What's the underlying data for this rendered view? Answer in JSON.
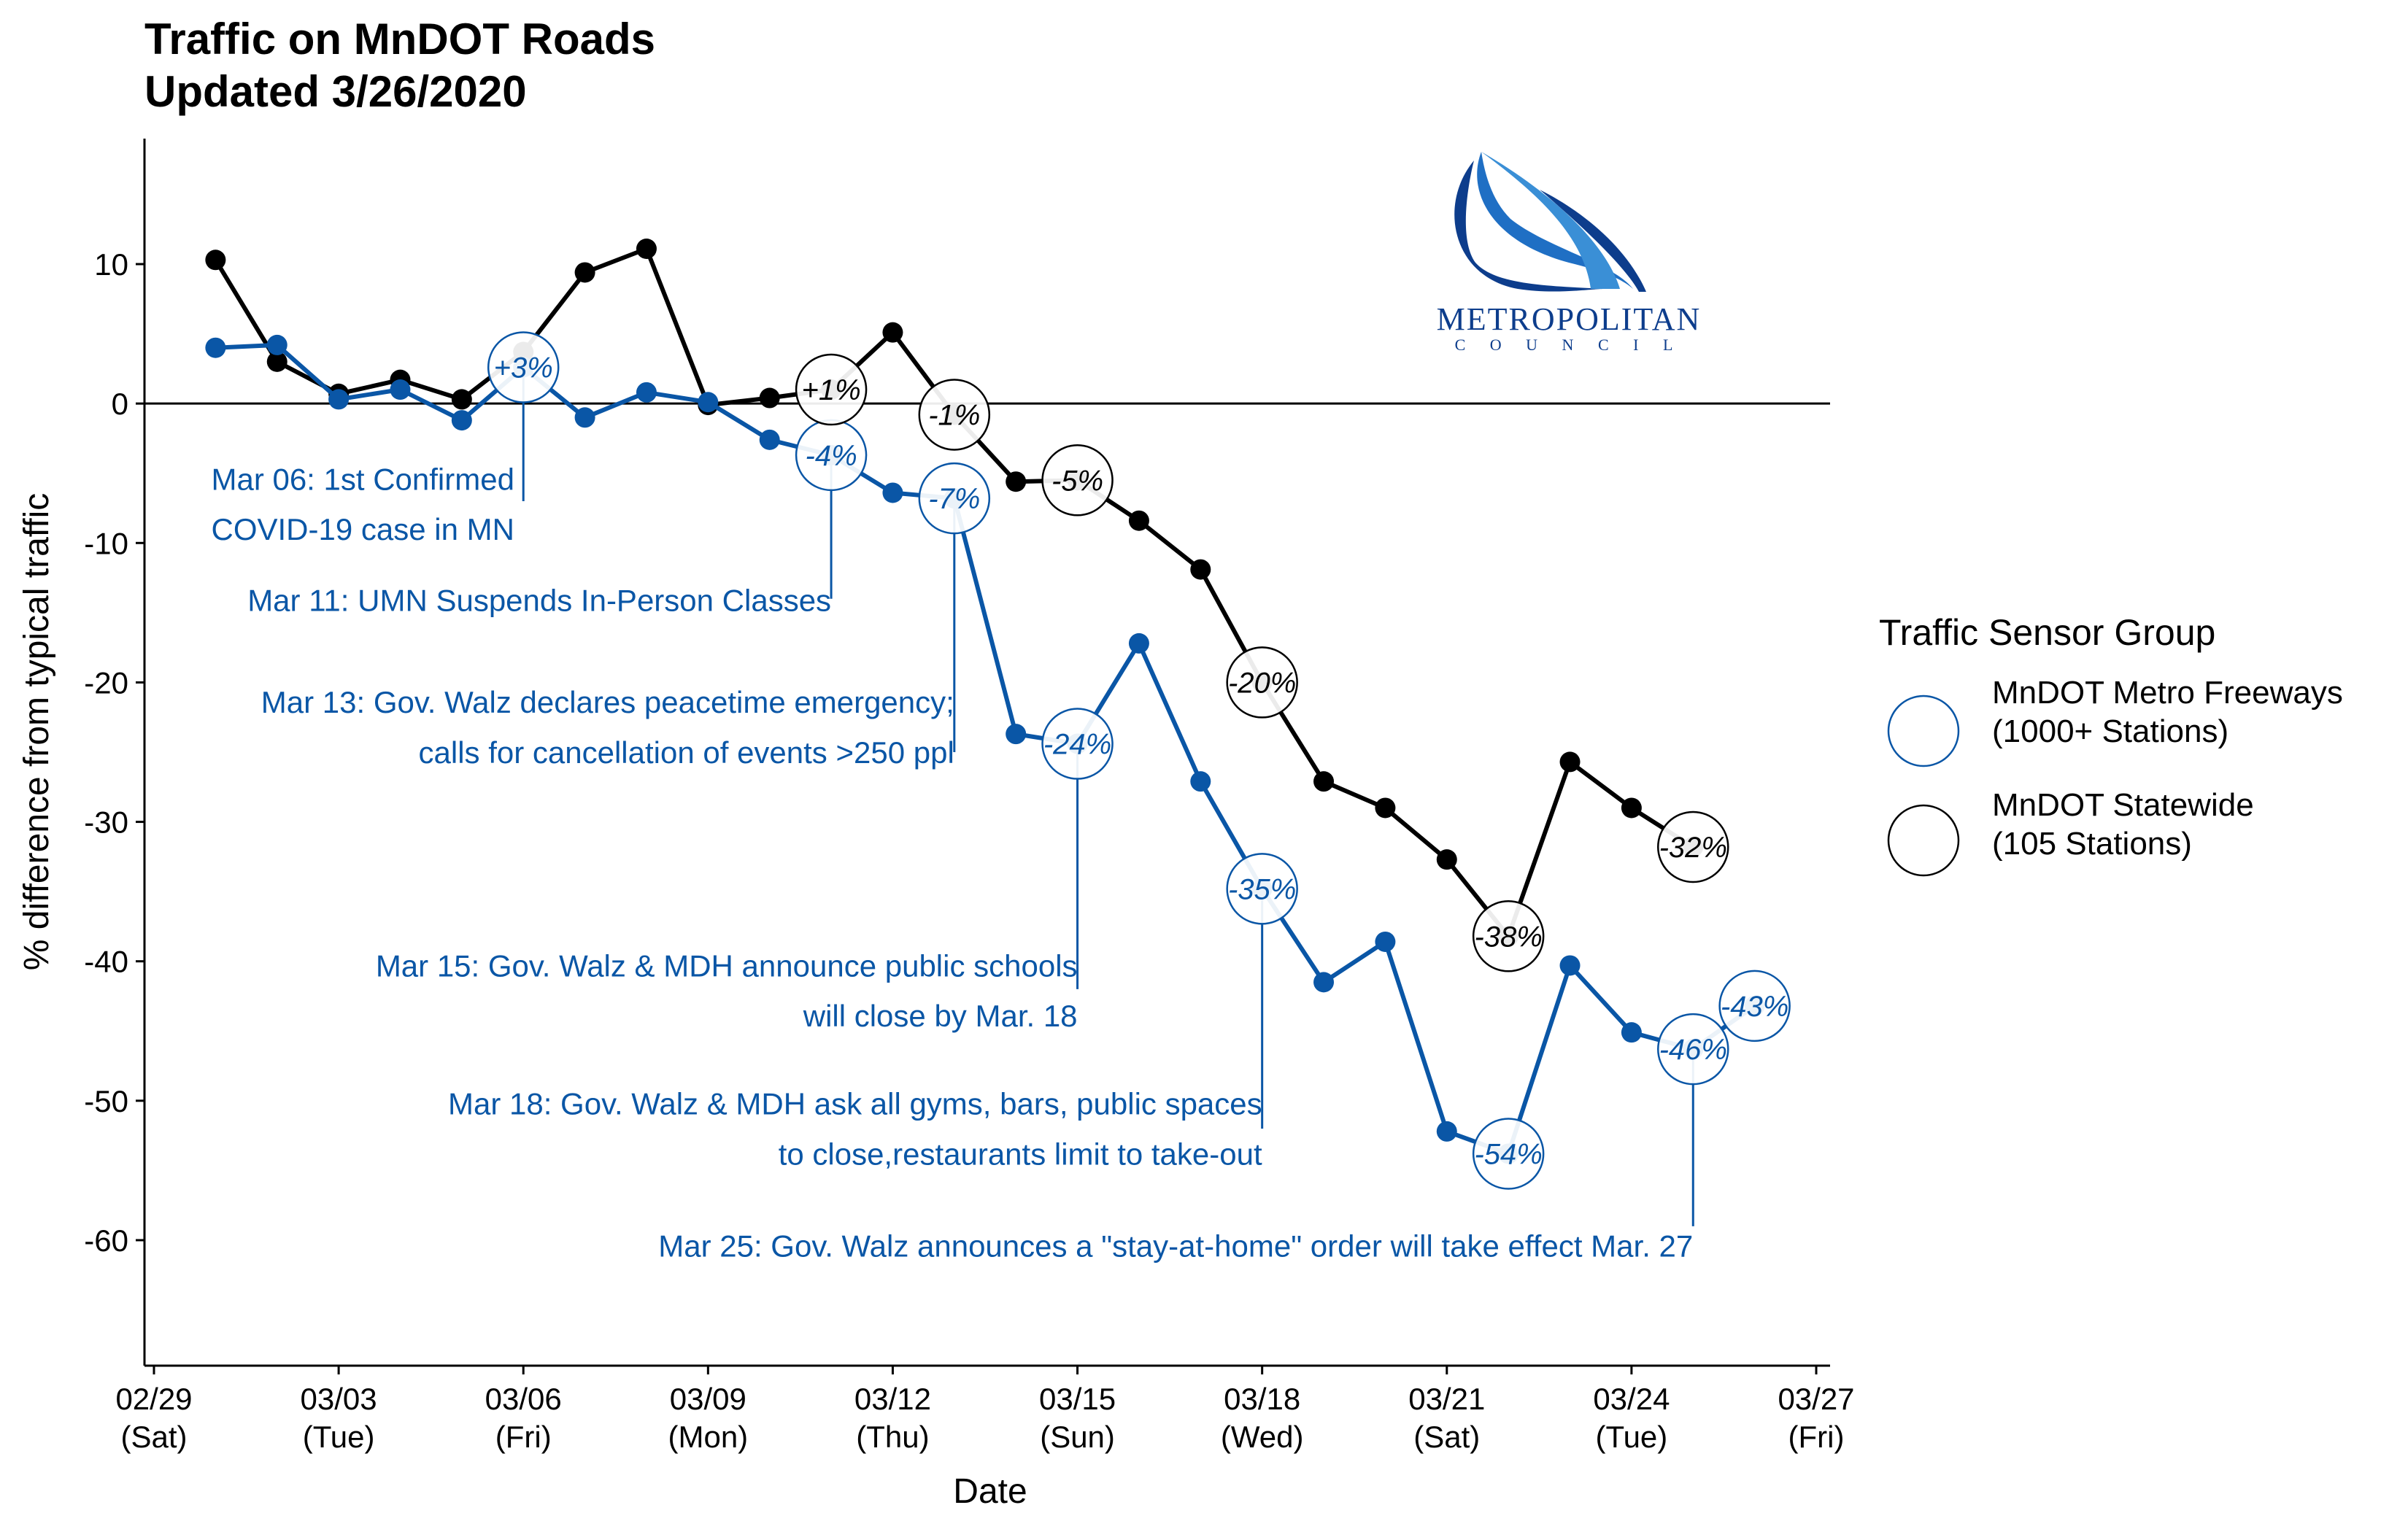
{
  "chart_data": {
    "type": "line",
    "title": "Traffic on MnDOT Roads",
    "subtitle": "Updated 3/26/2020",
    "xlabel": "Date",
    "ylabel": "% difference from typical traffic",
    "xlim": [
      "2020-02-29",
      "2020-03-27"
    ],
    "ylim": [
      -69,
      19
    ],
    "x_ticks": [
      {
        "date": "2020-02-29",
        "label": "02/29",
        "sub": "(Sat)"
      },
      {
        "date": "2020-03-03",
        "label": "03/03",
        "sub": "(Tue)"
      },
      {
        "date": "2020-03-06",
        "label": "03/06",
        "sub": "(Fri)"
      },
      {
        "date": "2020-03-09",
        "label": "03/09",
        "sub": "(Mon)"
      },
      {
        "date": "2020-03-12",
        "label": "03/12",
        "sub": "(Thu)"
      },
      {
        "date": "2020-03-15",
        "label": "03/15",
        "sub": "(Sun)"
      },
      {
        "date": "2020-03-18",
        "label": "03/18",
        "sub": "(Wed)"
      },
      {
        "date": "2020-03-21",
        "label": "03/21",
        "sub": "(Sat)"
      },
      {
        "date": "2020-03-24",
        "label": "03/24",
        "sub": "(Tue)"
      },
      {
        "date": "2020-03-27",
        "label": "03/27",
        "sub": "(Fri)"
      }
    ],
    "y_ticks": [
      10,
      0,
      -10,
      -20,
      -30,
      -40,
      -50,
      -60
    ],
    "grid": false,
    "legend": {
      "title": "Traffic Sensor Group",
      "position": "right",
      "entries": [
        {
          "line1": "MnDOT Metro Freeways",
          "line2": "(1000+ Stations)",
          "color": "#0a56a6"
        },
        {
          "line1": "MnDOT Statewide",
          "line2": "(105 Stations)",
          "color": "#000000"
        }
      ]
    },
    "series": [
      {
        "key": "metro",
        "color": "#0a56a6",
        "points": [
          {
            "x": "2020-03-01",
            "y": 4.0
          },
          {
            "x": "2020-03-02",
            "y": 4.2
          },
          {
            "x": "2020-03-03",
            "y": 0.3
          },
          {
            "x": "2020-03-04",
            "y": 1.0
          },
          {
            "x": "2020-03-05",
            "y": -1.2
          },
          {
            "x": "2020-03-06",
            "y": 2.6
          },
          {
            "x": "2020-03-07",
            "y": -1.0
          },
          {
            "x": "2020-03-08",
            "y": 0.8
          },
          {
            "x": "2020-03-09",
            "y": 0.1
          },
          {
            "x": "2020-03-10",
            "y": -2.6
          },
          {
            "x": "2020-03-11",
            "y": -3.7
          },
          {
            "x": "2020-03-12",
            "y": -6.4
          },
          {
            "x": "2020-03-13",
            "y": -6.8
          },
          {
            "x": "2020-03-14",
            "y": -23.7
          },
          {
            "x": "2020-03-15",
            "y": -24.4
          },
          {
            "x": "2020-03-16",
            "y": -17.2
          },
          {
            "x": "2020-03-17",
            "y": -27.1
          },
          {
            "x": "2020-03-18",
            "y": -34.8
          },
          {
            "x": "2020-03-19",
            "y": -41.5
          },
          {
            "x": "2020-03-20",
            "y": -38.6
          },
          {
            "x": "2020-03-21",
            "y": -52.2
          },
          {
            "x": "2020-03-22",
            "y": -53.8
          },
          {
            "x": "2020-03-23",
            "y": -40.3
          },
          {
            "x": "2020-03-24",
            "y": -45.1
          },
          {
            "x": "2020-03-25",
            "y": -46.3
          },
          {
            "x": "2020-03-26",
            "y": -43.2
          }
        ]
      },
      {
        "key": "statewide",
        "color": "#000000",
        "points": [
          {
            "x": "2020-03-01",
            "y": 10.3
          },
          {
            "x": "2020-03-02",
            "y": 3.0
          },
          {
            "x": "2020-03-03",
            "y": 0.7
          },
          {
            "x": "2020-03-04",
            "y": 1.7
          },
          {
            "x": "2020-03-05",
            "y": 0.3
          },
          {
            "x": "2020-03-06",
            "y": 3.7
          },
          {
            "x": "2020-03-07",
            "y": 9.4
          },
          {
            "x": "2020-03-08",
            "y": 11.1
          },
          {
            "x": "2020-03-09",
            "y": -0.1
          },
          {
            "x": "2020-03-10",
            "y": 0.4
          },
          {
            "x": "2020-03-11",
            "y": 1.0
          },
          {
            "x": "2020-03-12",
            "y": 5.1
          },
          {
            "x": "2020-03-13",
            "y": -0.8
          },
          {
            "x": "2020-03-14",
            "y": -5.6
          },
          {
            "x": "2020-03-15",
            "y": -5.5
          },
          {
            "x": "2020-03-16",
            "y": -8.4
          },
          {
            "x": "2020-03-17",
            "y": -11.9
          },
          {
            "x": "2020-03-18",
            "y": -20.0
          },
          {
            "x": "2020-03-19",
            "y": -27.1
          },
          {
            "x": "2020-03-20",
            "y": -29.0
          },
          {
            "x": "2020-03-21",
            "y": -32.7
          },
          {
            "x": "2020-03-22",
            "y": -38.2
          },
          {
            "x": "2020-03-23",
            "y": -25.7
          },
          {
            "x": "2020-03-24",
            "y": -29.0
          },
          {
            "x": "2020-03-25",
            "y": -31.8
          }
        ]
      }
    ],
    "data_labels": [
      {
        "series": "metro",
        "x": "2020-03-06",
        "y": 2.6,
        "text": "+3%"
      },
      {
        "series": "metro",
        "x": "2020-03-11",
        "y": -3.7,
        "text": "-4%"
      },
      {
        "series": "metro",
        "x": "2020-03-13",
        "y": -6.8,
        "text": "-7%"
      },
      {
        "series": "metro",
        "x": "2020-03-15",
        "y": -24.4,
        "text": "-24%"
      },
      {
        "series": "metro",
        "x": "2020-03-18",
        "y": -34.8,
        "text": "-35%"
      },
      {
        "series": "metro",
        "x": "2020-03-22",
        "y": -53.8,
        "text": "-54%"
      },
      {
        "series": "metro",
        "x": "2020-03-25",
        "y": -46.3,
        "text": "-46%"
      },
      {
        "series": "metro",
        "x": "2020-03-26",
        "y": -43.2,
        "text": "-43%"
      },
      {
        "series": "statewide",
        "x": "2020-03-11",
        "y": 1.0,
        "text": "+1%"
      },
      {
        "series": "statewide",
        "x": "2020-03-13",
        "y": -0.8,
        "text": "-1%"
      },
      {
        "series": "statewide",
        "x": "2020-03-15",
        "y": -5.5,
        "text": "-5%"
      },
      {
        "series": "statewide",
        "x": "2020-03-18",
        "y": -20.0,
        "text": "-20%"
      },
      {
        "series": "statewide",
        "x": "2020-03-22",
        "y": -38.2,
        "text": "-38%"
      },
      {
        "series": "statewide",
        "x": "2020-03-25",
        "y": -31.8,
        "text": "-32%"
      }
    ],
    "annotations": [
      {
        "date": "2020-03-06",
        "from_y": 2.6,
        "to_y": -7,
        "lines": [
          "Mar 06: 1st Confirmed",
          "COVID-19 case in MN"
        ],
        "align": "center",
        "text_y": [
          -5.4,
          -9.0
        ]
      },
      {
        "date": "2020-03-11",
        "from_y": -3.7,
        "to_y": -14,
        "lines": [
          "Mar 11: UMN Suspends In-Person Classes"
        ],
        "align": "end",
        "text_y": [
          -14.1
        ]
      },
      {
        "date": "2020-03-13",
        "from_y": -6.8,
        "to_y": -25,
        "lines": [
          "Mar 13: Gov. Walz declares peacetime emergency;",
          "calls for cancellation of events >250 ppl"
        ],
        "align": "end",
        "text_y": [
          -21.4,
          -25.0
        ]
      },
      {
        "date": "2020-03-15",
        "from_y": -24.4,
        "to_y": -42,
        "lines": [
          "Mar 15: Gov. Walz & MDH announce public schools",
          "will close by Mar. 18"
        ],
        "align": "end",
        "text_y": [
          -40.3,
          -43.9
        ]
      },
      {
        "date": "2020-03-18",
        "from_y": -34.8,
        "to_y": -52,
        "lines": [
          "Mar 18: Gov. Walz & MDH ask all gyms, bars, public spaces",
          "to close,restaurants limit to take-out"
        ],
        "align": "end",
        "text_y": [
          -50.2,
          -53.8
        ]
      },
      {
        "date": "2020-03-25",
        "from_y": -46.3,
        "to_y": -59,
        "lines": [
          "Mar 25: Gov. Walz announces a \"stay-at-home\" order will take effect Mar. 27"
        ],
        "align": "end",
        "text_y": [
          -60.4
        ]
      }
    ]
  },
  "logo": {
    "name": "METROPOLITAN",
    "sub": "C O U N C I L",
    "colors": [
      "#0d3d8c",
      "#3a8fd6"
    ]
  }
}
